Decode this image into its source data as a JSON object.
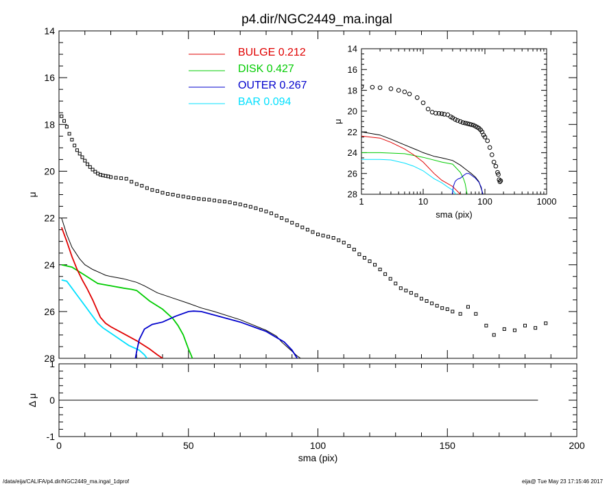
{
  "chart_data": [
    {
      "id": "main-profile",
      "type": "line",
      "title": "p4.dir/NGC2449_ma.ingal",
      "xlabel": "sma (pix)",
      "ylabel": "μ",
      "xlim": [
        0,
        200
      ],
      "ylim": [
        28,
        14
      ],
      "y_inverted": true,
      "xticks": [
        0,
        50,
        100,
        150,
        200
      ],
      "yticks": [
        14,
        16,
        18,
        20,
        22,
        24,
        26,
        28
      ],
      "legend": [
        {
          "name": "BULGE",
          "value": "0.212",
          "color": "#e00000"
        },
        {
          "name": "DISK",
          "value": "0.427",
          "color": "#00cc00"
        },
        {
          "name": "OUTER",
          "value": "0.267",
          "color": "#0000cc"
        },
        {
          "name": "BAR",
          "value": "0.094",
          "color": "#00e0ff"
        }
      ],
      "legend_position": "top-center",
      "observed": {
        "x": [
          1,
          2,
          3,
          4,
          5,
          6,
          7,
          8,
          9,
          10,
          11,
          12,
          13,
          14,
          15,
          16,
          17,
          18,
          19,
          20,
          22,
          24,
          26,
          28,
          30,
          32,
          34,
          36,
          38,
          40,
          42,
          44,
          46,
          48,
          50,
          52,
          54,
          56,
          58,
          60,
          62,
          64,
          66,
          68,
          70,
          72,
          74,
          76,
          78,
          80,
          82,
          84,
          86,
          88,
          90,
          92,
          94,
          96,
          98,
          100,
          102,
          104,
          106,
          108,
          110,
          112,
          114,
          116,
          118,
          120,
          122,
          124,
          126,
          128,
          130,
          132,
          134,
          136,
          138,
          140,
          142,
          144,
          146,
          148,
          150,
          152,
          155,
          158,
          161,
          165,
          168,
          172,
          176,
          180,
          184,
          188
        ],
        "y": [
          17.65,
          17.85,
          18.1,
          18.4,
          18.65,
          18.9,
          19.1,
          19.25,
          19.4,
          19.55,
          19.7,
          19.82,
          19.93,
          20.02,
          20.1,
          20.15,
          20.18,
          20.2,
          20.22,
          20.25,
          20.28,
          20.3,
          20.32,
          20.45,
          20.55,
          20.62,
          20.72,
          20.8,
          20.85,
          20.92,
          20.97,
          21.0,
          21.05,
          21.08,
          21.12,
          21.15,
          21.18,
          21.2,
          21.22,
          21.25,
          21.28,
          21.3,
          21.33,
          21.38,
          21.42,
          21.47,
          21.52,
          21.58,
          21.65,
          21.72,
          21.8,
          21.9,
          22.0,
          22.1,
          22.2,
          22.3,
          22.4,
          22.5,
          22.6,
          22.7,
          22.75,
          22.8,
          22.85,
          22.95,
          23.05,
          23.2,
          23.35,
          23.55,
          23.7,
          23.85,
          24.0,
          24.2,
          24.4,
          24.6,
          24.8,
          25.0,
          25.1,
          25.2,
          25.3,
          25.45,
          25.55,
          25.65,
          25.75,
          25.85,
          25.9,
          26.0,
          26.1,
          25.8,
          26.1,
          26.6,
          27.0,
          26.75,
          26.8,
          26.6,
          26.7,
          26.5
        ]
      },
      "model": {
        "total": {
          "x": [
            1,
            3,
            5,
            8,
            10,
            13,
            16,
            18,
            20,
            25,
            30,
            33,
            38,
            42,
            50,
            55,
            60,
            70,
            80,
            84,
            86,
            88,
            90,
            92,
            94
          ],
          "y": [
            22.0,
            22.7,
            23.25,
            23.75,
            24.0,
            24.2,
            24.35,
            24.45,
            24.5,
            24.6,
            24.75,
            24.9,
            25.2,
            25.35,
            25.65,
            25.85,
            26.0,
            26.35,
            26.8,
            27.05,
            27.3,
            27.5,
            27.7,
            27.9,
            28.05
          ]
        },
        "bulge": {
          "x": [
            1,
            3,
            5,
            7,
            9,
            11,
            13,
            15,
            16,
            18,
            20,
            25,
            30,
            35,
            38,
            40
          ],
          "y": [
            22.4,
            23.0,
            23.65,
            24.2,
            24.65,
            25.05,
            25.5,
            26.0,
            26.25,
            26.5,
            26.65,
            26.95,
            27.25,
            27.6,
            27.85,
            28.0
          ]
        },
        "disk": {
          "x": [
            1,
            5,
            10,
            15,
            20,
            25,
            28,
            30,
            35,
            40,
            44,
            46,
            48,
            49,
            50,
            51,
            51.5
          ],
          "y": [
            24.0,
            24.1,
            24.45,
            24.8,
            24.9,
            25.0,
            25.05,
            25.1,
            25.55,
            25.9,
            26.3,
            26.6,
            27.0,
            27.3,
            27.6,
            27.85,
            28.0
          ]
        },
        "outer": {
          "x": [
            29.5,
            30,
            31,
            33,
            36,
            40,
            45,
            50,
            52,
            55,
            60,
            65,
            70,
            80,
            87,
            90,
            92
          ],
          "y": [
            28.0,
            27.7,
            27.2,
            26.75,
            26.55,
            26.45,
            26.2,
            26.0,
            25.98,
            26.0,
            26.15,
            26.3,
            26.45,
            26.85,
            27.3,
            27.65,
            28.0
          ]
        },
        "bar": {
          "x": [
            1,
            3,
            5,
            7,
            9,
            11,
            13,
            15,
            17,
            19,
            21,
            23,
            25,
            27,
            29,
            31,
            33,
            34
          ],
          "y": [
            24.65,
            24.7,
            25.0,
            25.3,
            25.6,
            25.9,
            26.2,
            26.5,
            26.7,
            26.85,
            27.0,
            27.15,
            27.3,
            27.45,
            27.55,
            27.65,
            27.85,
            28.0
          ]
        }
      }
    },
    {
      "id": "residuals",
      "type": "line",
      "xlabel": "sma (pix)",
      "ylabel": "Δ μ",
      "xlim": [
        0,
        200
      ],
      "ylim": [
        -1,
        1
      ],
      "yticks": [
        1,
        0,
        -1
      ],
      "xticks": [
        0,
        50,
        100,
        150,
        200
      ],
      "residual": {
        "x": [
          0,
          185
        ],
        "y": [
          0,
          0
        ]
      }
    },
    {
      "id": "inset-log",
      "type": "line",
      "xlabel": "sma (pix)",
      "ylabel": "μ",
      "xscale": "log",
      "xlim": [
        1,
        1000
      ],
      "ylim": [
        28,
        14
      ],
      "xticks": [
        1,
        10,
        100,
        1000
      ],
      "yticks": [
        14,
        16,
        18,
        20,
        22,
        24,
        26,
        28
      ],
      "observed": {
        "x": [
          1,
          1.5,
          2,
          3,
          4,
          5,
          6,
          8,
          10,
          12,
          14,
          16,
          18,
          20,
          22,
          25,
          28,
          30,
          33,
          36,
          40,
          44,
          48,
          52,
          56,
          60,
          65,
          70,
          75,
          80,
          85,
          90,
          95,
          100,
          110,
          120,
          130,
          140,
          150,
          160,
          165,
          170,
          175,
          180
        ],
        "y": [
          17.65,
          17.7,
          17.75,
          17.85,
          18.0,
          18.15,
          18.35,
          18.7,
          19.2,
          19.8,
          20.1,
          20.2,
          20.22,
          20.25,
          20.3,
          20.35,
          20.55,
          20.65,
          20.8,
          20.9,
          21.0,
          21.1,
          21.15,
          21.2,
          21.25,
          21.3,
          21.35,
          21.45,
          21.55,
          21.65,
          21.8,
          22.0,
          22.3,
          22.5,
          22.85,
          23.5,
          24.2,
          24.9,
          25.3,
          25.9,
          26.1,
          26.6,
          26.8,
          26.7
        ]
      },
      "model": {
        "total": {
          "x": [
            1,
            2,
            3,
            5,
            8,
            10,
            15,
            20,
            30,
            40,
            50,
            60,
            70,
            80,
            90,
            94
          ],
          "y": [
            22.0,
            22.3,
            22.7,
            23.25,
            23.75,
            24.0,
            24.35,
            24.5,
            24.75,
            25.2,
            25.65,
            26.0,
            26.35,
            26.8,
            27.7,
            28.05
          ]
        },
        "bulge": {
          "x": [
            1,
            2,
            3,
            5,
            7,
            10,
            15,
            20,
            30,
            40
          ],
          "y": [
            22.4,
            22.6,
            23.0,
            23.65,
            24.2,
            24.9,
            26.0,
            26.65,
            27.25,
            28.0
          ]
        },
        "disk": {
          "x": [
            1,
            2,
            5,
            10,
            20,
            30,
            40,
            45,
            48,
            50,
            51.5
          ],
          "y": [
            24.0,
            24.0,
            24.1,
            24.45,
            24.9,
            25.1,
            25.9,
            26.5,
            27.0,
            27.6,
            28.0
          ]
        },
        "outer": {
          "x": [
            29.5,
            31,
            33,
            36,
            40,
            45,
            50,
            55,
            60,
            70,
            80,
            87,
            92
          ],
          "y": [
            28.0,
            27.2,
            26.75,
            26.55,
            26.45,
            26.2,
            26.0,
            26.0,
            26.15,
            26.45,
            26.85,
            27.3,
            28.0
          ]
        },
        "bar": {
          "x": [
            1,
            2,
            3,
            5,
            7,
            10,
            15,
            20,
            25,
            30,
            34
          ],
          "y": [
            24.65,
            24.65,
            24.7,
            25.0,
            25.3,
            25.75,
            26.5,
            26.9,
            27.3,
            27.6,
            28.0
          ]
        }
      }
    }
  ],
  "footer": {
    "left": "/data/eija/CALIFA/p4.dir/NGC2449_ma.ingal_1dprof",
    "right": "eija@  Tue May 23 17:15:46 2017"
  },
  "colors": {
    "total": "#000000",
    "bulge": "#e00000",
    "disk": "#00cc00",
    "outer": "#0000cc",
    "bar": "#00e0ff",
    "points": "#000000"
  }
}
